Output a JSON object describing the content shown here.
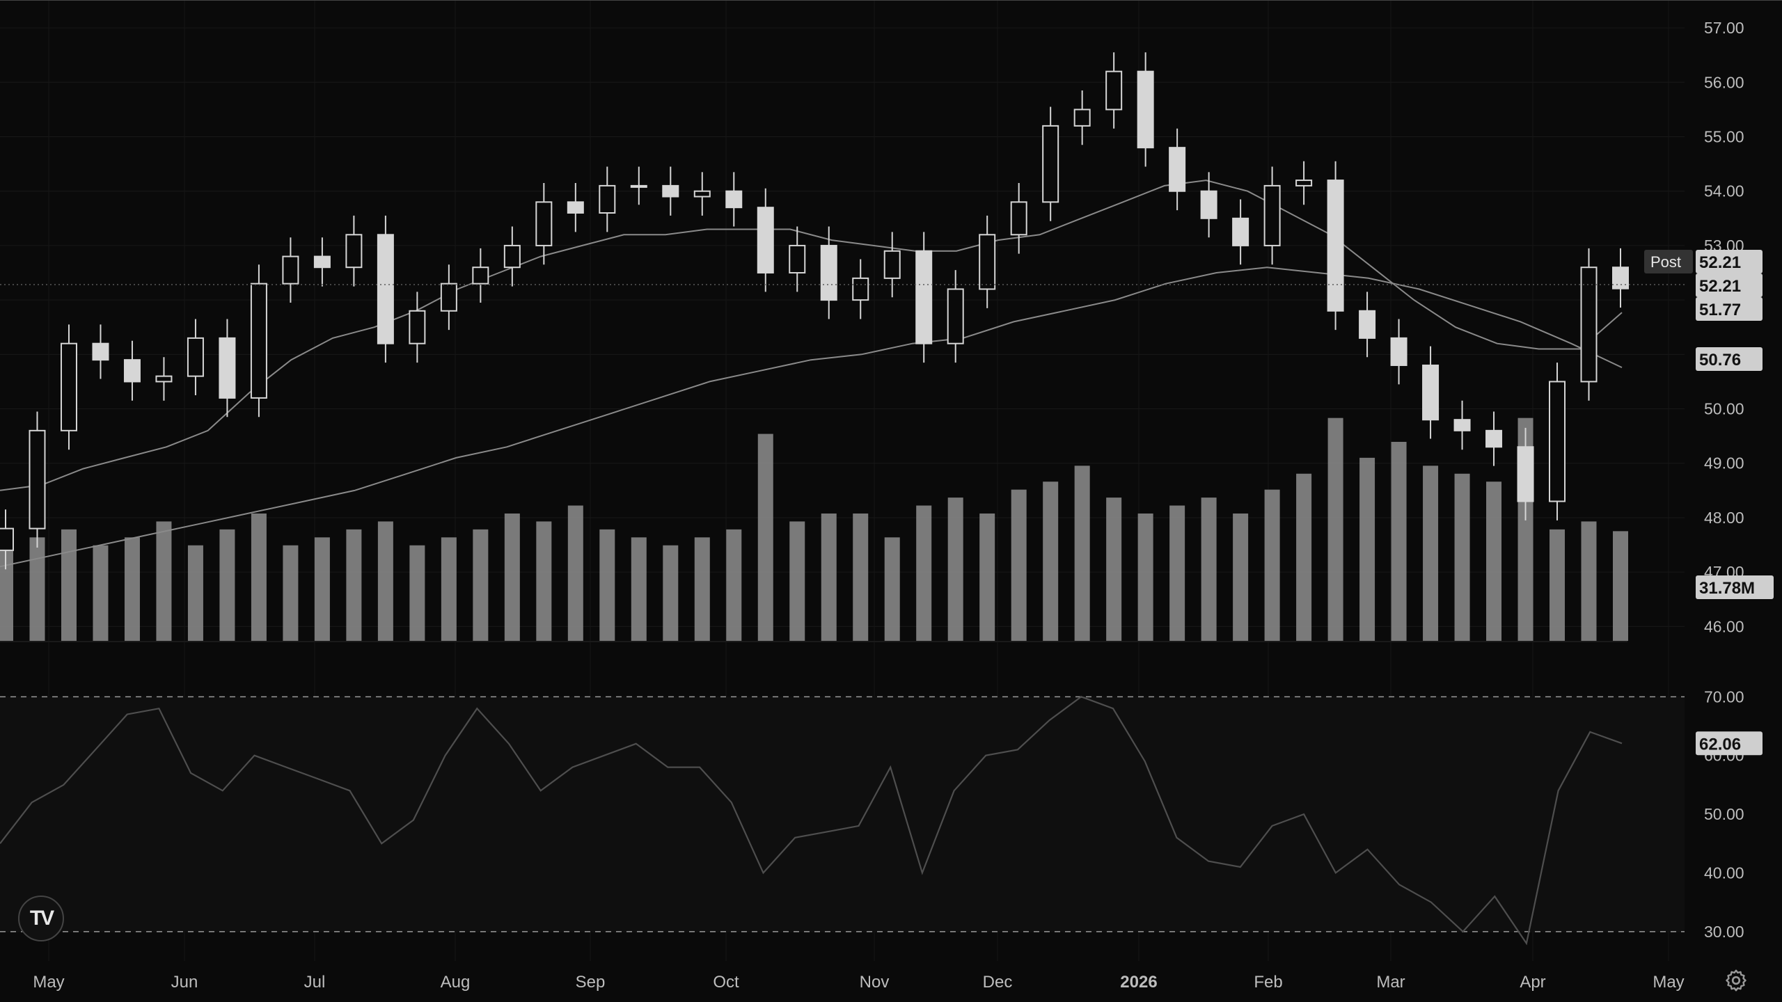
{
  "colors": {
    "background": "#0a0a0a",
    "candle": "#d6d6d6",
    "volume": "#8e8e8e",
    "ma_line": "#8a8a8a",
    "rsi_line": "#4e4e4e",
    "label_bg": "#cfcfcf",
    "axis_text": "#bdbdbd"
  },
  "watermark": {
    "icon": "tradingview-logo-icon",
    "text": "TV"
  },
  "settings_icon": "gear-icon",
  "chart_data": [
    {
      "type": "candlestick",
      "subtype": "price-with-volume-and-moving-averages",
      "x": [
        "2025-05-01",
        "2025-05-08",
        "2025-05-15",
        "2025-05-22",
        "2025-05-29",
        "2025-06-05",
        "2025-06-12",
        "2025-06-19",
        "2025-06-26",
        "2025-07-03",
        "2025-07-10",
        "2025-07-17",
        "2025-07-24",
        "2025-07-31",
        "2025-08-07",
        "2025-08-14",
        "2025-08-21",
        "2025-08-28",
        "2025-09-04",
        "2025-09-11",
        "2025-09-18",
        "2025-09-25",
        "2025-10-02",
        "2025-10-09",
        "2025-10-16",
        "2025-10-23",
        "2025-10-30",
        "2025-11-06",
        "2025-11-13",
        "2025-11-20",
        "2025-11-27",
        "2025-12-04",
        "2025-12-11",
        "2025-12-18",
        "2025-12-25",
        "2026-01-01",
        "2026-01-08",
        "2026-01-15",
        "2026-01-22",
        "2026-01-29",
        "2026-02-05",
        "2026-02-12",
        "2026-02-19",
        "2026-02-26",
        "2026-03-05",
        "2026-03-12",
        "2026-03-19",
        "2026-03-26",
        "2026-04-02",
        "2026-04-09",
        "2026-04-16",
        "2026-04-21"
      ],
      "close": [
        47.8,
        49.6,
        51.2,
        50.9,
        50.5,
        50.6,
        51.3,
        50.2,
        52.3,
        52.8,
        52.6,
        53.2,
        51.2,
        51.8,
        52.3,
        52.6,
        53.0,
        53.8,
        53.6,
        54.1,
        54.1,
        53.9,
        54.0,
        53.7,
        52.5,
        53.0,
        52.0,
        52.4,
        52.9,
        51.2,
        52.2,
        53.2,
        53.8,
        55.2,
        55.5,
        56.2,
        54.8,
        54.0,
        53.5,
        53.0,
        54.1,
        54.2,
        51.8,
        51.3,
        50.8,
        49.8,
        49.6,
        49.3,
        48.3,
        50.5,
        52.6,
        52.21
      ],
      "sma_50": [
        48.5,
        48.6,
        48.9,
        49.1,
        49.3,
        49.6,
        50.3,
        50.9,
        51.3,
        51.5,
        51.8,
        52.2,
        52.5,
        52.8,
        53.0,
        53.2,
        53.2,
        53.3,
        53.3,
        53.3,
        53.1,
        53.0,
        52.9,
        52.9,
        53.1,
        53.2,
        53.5,
        53.8,
        54.1,
        54.2,
        54.0,
        53.6,
        53.2,
        52.6,
        52.0,
        51.5,
        51.2,
        51.1,
        51.1,
        51.77
      ],
      "sma_200": [
        47.1,
        47.3,
        47.5,
        47.7,
        47.9,
        48.1,
        48.3,
        48.5,
        48.8,
        49.1,
        49.3,
        49.6,
        49.9,
        50.2,
        50.5,
        50.7,
        50.9,
        51.0,
        51.2,
        51.3,
        51.6,
        51.8,
        52.0,
        52.3,
        52.5,
        52.6,
        52.5,
        52.4,
        52.2,
        51.9,
        51.6,
        51.2,
        50.76
      ],
      "volume_m": [
        30,
        31,
        32,
        30,
        31,
        33,
        30,
        32,
        34,
        30,
        31,
        32,
        33,
        30,
        31,
        32,
        34,
        33,
        35,
        32,
        31,
        30,
        31,
        32,
        44,
        33,
        34,
        34,
        31,
        35,
        36,
        34,
        37,
        38,
        40,
        36,
        34,
        35,
        36,
        34,
        37,
        39,
        46,
        41,
        43,
        40,
        39,
        38,
        46,
        32,
        33,
        31.78
      ],
      "price_axis_ticks": [
        "57.00",
        "56.00",
        "55.00",
        "54.00",
        "53.00",
        "52.00",
        "51.00",
        "50.00",
        "49.00",
        "48.00",
        "47.00",
        "46.00"
      ],
      "x_axis_ticks": [
        "May",
        "Jun",
        "Jul",
        "Aug",
        "Sep",
        "Oct",
        "Nov",
        "Dec",
        "2026",
        "Feb",
        "Mar",
        "Apr",
        "May"
      ],
      "ylim": [
        45.8,
        57.5
      ],
      "labels": {
        "post": "Post",
        "post_price": "52.21",
        "last_price": "52.21",
        "sma_50_value": "51.77",
        "sma_200_value": "50.76",
        "volume": "31.78M"
      },
      "grid": true
    },
    {
      "type": "line",
      "subtype": "rsi",
      "values": [
        45,
        52,
        55,
        61,
        67,
        68,
        57,
        54,
        60,
        58,
        56,
        54,
        45,
        49,
        60,
        68,
        62,
        54,
        58,
        60,
        62,
        58,
        58,
        52,
        40,
        46,
        47,
        48,
        58,
        40,
        54,
        60,
        61,
        66,
        70,
        68,
        59,
        46,
        42,
        41,
        48,
        50,
        40,
        44,
        38,
        35,
        30,
        36,
        28,
        54,
        64,
        62.06
      ],
      "upper_band": 70,
      "lower_band": 30,
      "ticks": [
        "70.00",
        "60.00",
        "50.00",
        "40.00",
        "30.00"
      ],
      "ylim": [
        25,
        73
      ],
      "labels": {
        "value": "62.06"
      }
    }
  ]
}
